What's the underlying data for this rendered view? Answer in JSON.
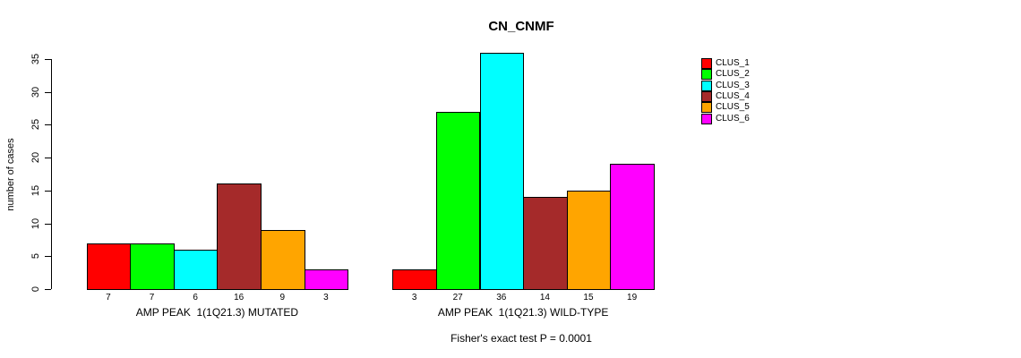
{
  "chart_data": {
    "type": "bar",
    "title": "CN_CNMF",
    "ylabel": "number of cases",
    "xlabel": "",
    "ylim": [
      0,
      36
    ],
    "yticks": [
      0,
      5,
      10,
      15,
      20,
      25,
      30,
      35
    ],
    "grid": false,
    "bar_border_color": "#000000",
    "series_colors": [
      "#FF0000",
      "#00FF00",
      "#00FFFF",
      "#A52A2A",
      "#FFA500",
      "#FF00FF"
    ],
    "legend_position": "right-outside",
    "legend": [
      {
        "label": "CLUS_1",
        "color": "#FF0000"
      },
      {
        "label": "CLUS_2",
        "color": "#00FF00"
      },
      {
        "label": "CLUS_3",
        "color": "#00FFFF"
      },
      {
        "label": "CLUS_4",
        "color": "#A52A2A"
      },
      {
        "label": "CLUS_5",
        "color": "#FFA500"
      },
      {
        "label": "CLUS_6",
        "color": "#FF00FF"
      }
    ],
    "groups": [
      {
        "label": "AMP PEAK  1(1Q21.3) MUTATED",
        "values": [
          7,
          7,
          6,
          16,
          9,
          3
        ],
        "value_labels": [
          "7",
          "7",
          "6",
          "16",
          "9",
          "3"
        ]
      },
      {
        "label": "AMP PEAK  1(1Q21.3) WILD-TYPE",
        "values": [
          3,
          27,
          36,
          14,
          15,
          19
        ],
        "value_labels": [
          "3",
          "27",
          "36",
          "14",
          "15",
          "19"
        ]
      }
    ],
    "annotation": "Fisher's exact test P = 0.0001"
  }
}
